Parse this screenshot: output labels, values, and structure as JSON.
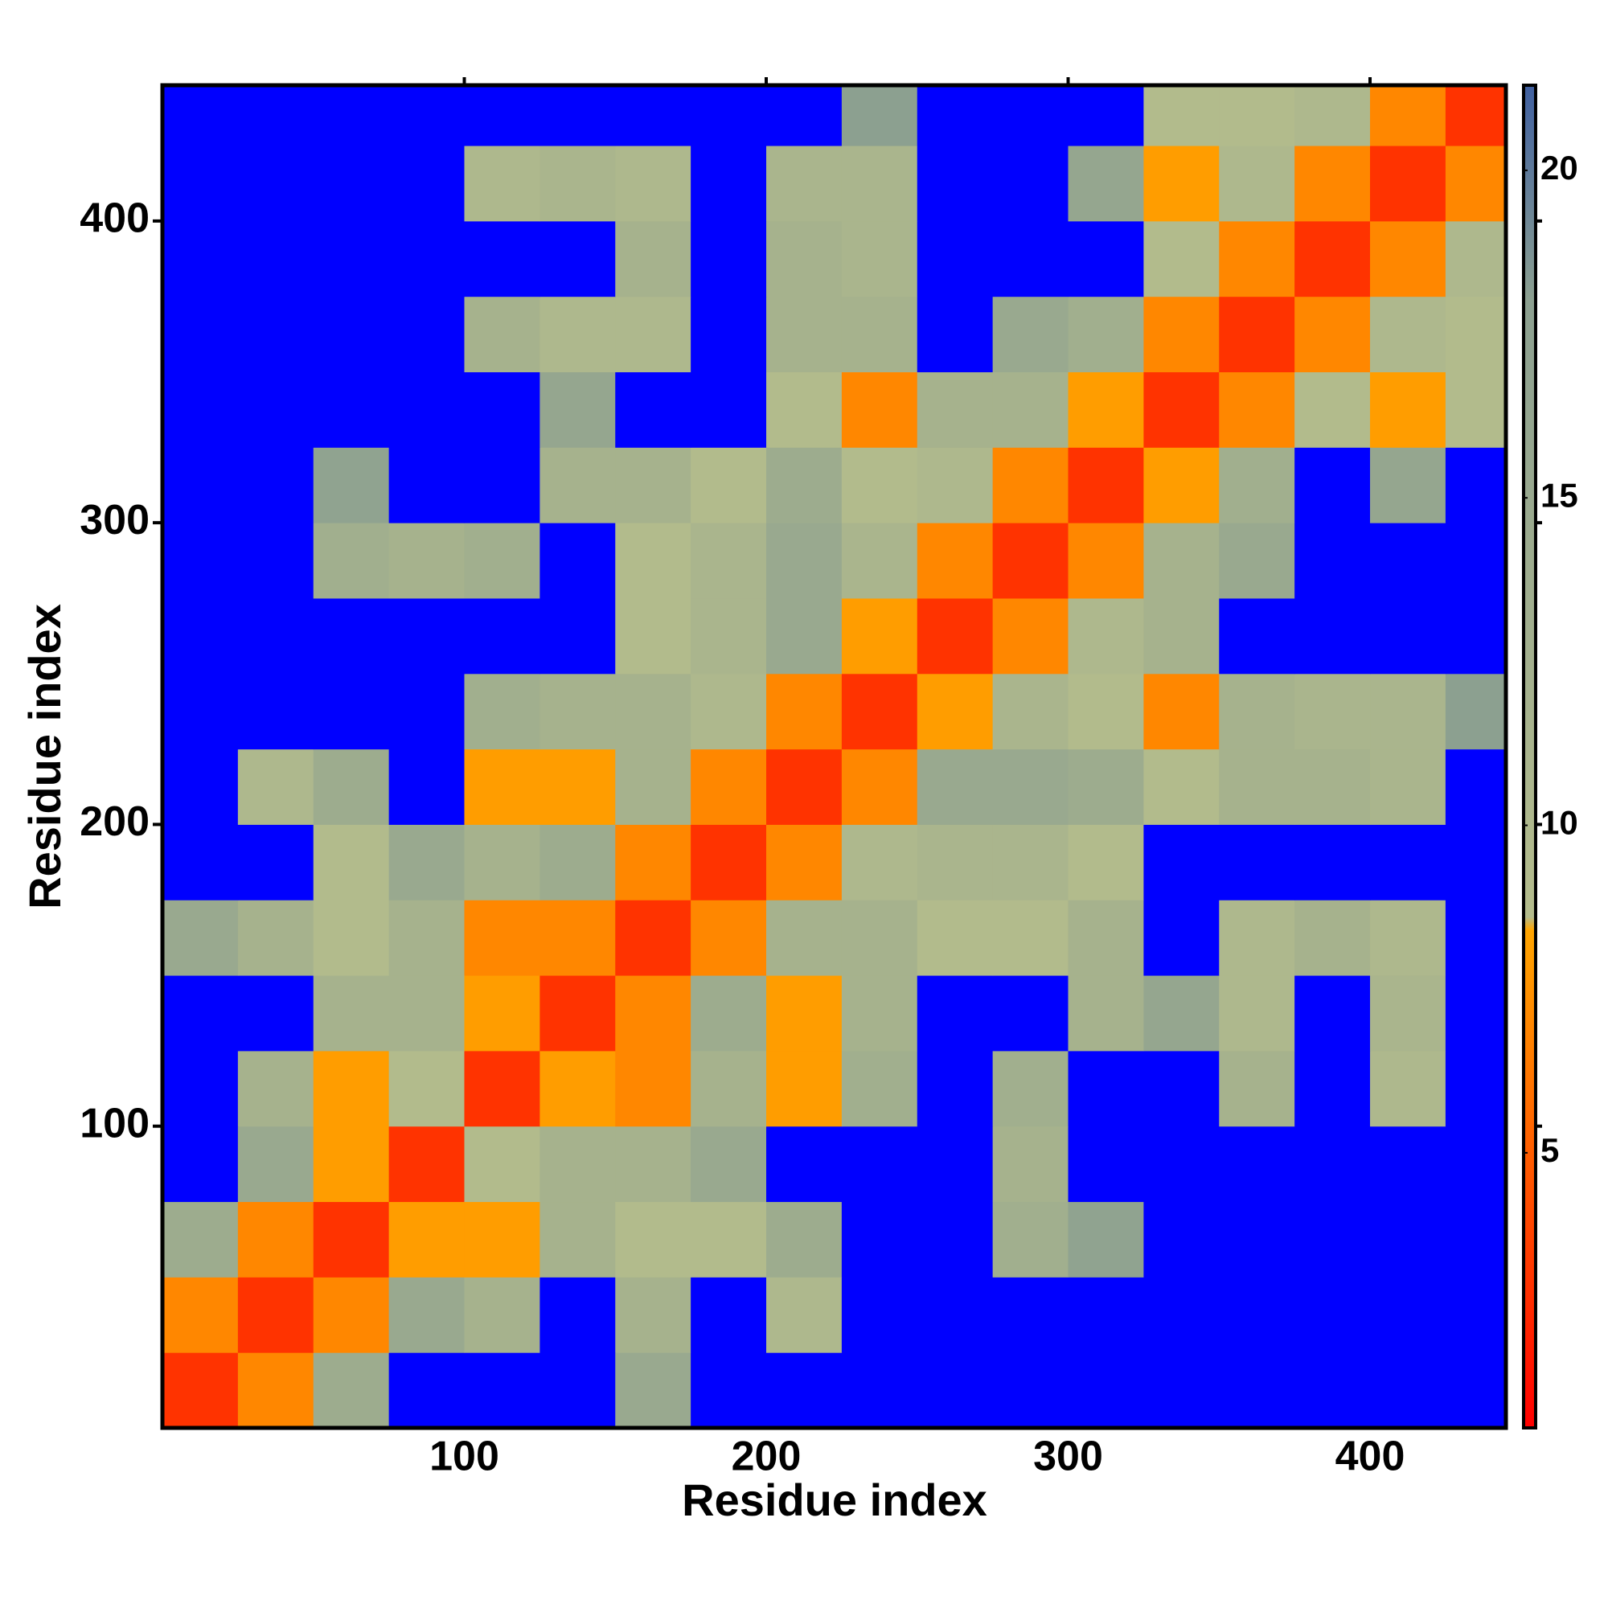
{
  "chart_data": {
    "type": "heatmap",
    "xlabel": "Residue index",
    "ylabel": "Residue index",
    "x_bins": [
      0,
      25,
      50,
      75,
      100,
      125,
      150,
      175,
      200,
      225,
      250,
      275,
      300,
      325,
      350,
      375,
      400,
      425,
      445
    ],
    "y_bins": [
      0,
      25,
      50,
      75,
      100,
      125,
      150,
      175,
      200,
      225,
      250,
      275,
      300,
      325,
      350,
      375,
      400,
      425,
      445
    ],
    "xlim": [
      0,
      445
    ],
    "ylim": [
      0,
      445
    ],
    "xticks": [
      100,
      200,
      300,
      400
    ],
    "yticks": [
      100,
      200,
      300,
      400
    ],
    "z": [
      [
        3,
        7,
        14,
        25,
        25,
        25,
        15,
        25,
        25,
        25,
        25,
        25,
        25,
        25,
        25,
        25,
        25,
        25
      ],
      [
        7,
        3,
        7,
        15,
        12,
        25,
        12,
        25,
        10,
        25,
        25,
        25,
        25,
        25,
        25,
        25,
        25,
        25
      ],
      [
        14,
        7,
        3,
        8,
        8,
        12,
        9,
        9,
        14,
        25,
        25,
        13,
        17,
        25,
        25,
        25,
        25,
        25
      ],
      [
        25,
        15,
        8,
        3,
        9,
        12,
        12,
        15,
        25,
        25,
        25,
        12,
        25,
        25,
        25,
        25,
        25,
        25
      ],
      [
        25,
        12,
        8,
        9,
        3,
        8,
        7,
        12,
        8,
        13,
        25,
        13,
        25,
        25,
        12,
        25,
        10,
        25
      ],
      [
        25,
        25,
        12,
        12,
        8,
        3,
        7,
        14,
        8,
        12,
        25,
        25,
        12,
        16,
        10,
        25,
        11,
        25
      ],
      [
        15,
        12,
        9,
        12,
        7,
        7,
        3,
        7,
        12,
        12,
        9,
        9,
        12,
        25,
        10,
        12,
        10,
        25
      ],
      [
        25,
        25,
        9,
        15,
        12,
        14,
        7,
        3,
        7,
        10,
        11,
        11,
        9,
        25,
        25,
        25,
        25,
        25
      ],
      [
        25,
        10,
        14,
        25,
        8,
        8,
        12,
        7,
        3,
        7,
        15,
        15,
        14,
        9,
        12,
        12,
        11,
        25
      ],
      [
        25,
        25,
        25,
        25,
        13,
        12,
        12,
        10,
        7,
        3,
        8,
        11,
        9,
        7,
        12,
        11,
        11,
        18
      ],
      [
        25,
        25,
        25,
        25,
        25,
        25,
        9,
        11,
        15,
        8,
        3,
        7,
        10,
        12,
        25,
        25,
        25,
        25
      ],
      [
        25,
        25,
        13,
        12,
        13,
        25,
        9,
        11,
        15,
        11,
        7,
        3,
        7,
        12,
        15,
        25,
        25,
        25
      ],
      [
        25,
        25,
        17,
        25,
        25,
        12,
        12,
        9,
        14,
        9,
        10,
        7,
        3,
        8,
        13,
        25,
        16,
        25
      ],
      [
        25,
        25,
        25,
        25,
        25,
        16,
        25,
        25,
        9,
        7,
        12,
        12,
        8,
        3,
        7,
        9,
        8,
        9
      ],
      [
        25,
        25,
        25,
        25,
        12,
        10,
        10,
        25,
        12,
        12,
        25,
        15,
        13,
        7,
        3,
        7,
        10,
        9
      ],
      [
        25,
        25,
        25,
        25,
        25,
        25,
        12,
        25,
        12,
        11,
        25,
        25,
        25,
        9,
        7,
        3,
        7,
        10
      ],
      [
        25,
        25,
        25,
        25,
        10,
        11,
        10,
        25,
        11,
        11,
        25,
        25,
        16,
        8,
        10,
        7,
        3,
        7
      ],
      [
        25,
        25,
        25,
        25,
        25,
        25,
        25,
        25,
        25,
        18,
        25,
        25,
        25,
        9,
        9,
        10,
        7,
        3
      ]
    ],
    "colorbar": {
      "range": [
        0.8,
        21.3
      ],
      "ticks": [
        5,
        10,
        15,
        20
      ],
      "stops": [
        {
          "value": 0.8,
          "color": "#ff0000"
        },
        {
          "value": 3,
          "color": "#ff3300"
        },
        {
          "value": 8.4,
          "color": "#ffa500"
        },
        {
          "value": 8.6,
          "color": "#b4bc8c"
        },
        {
          "value": 18,
          "color": "#8ca090"
        },
        {
          "value": 21.3,
          "color": "#4060a0"
        }
      ],
      "over_color": "#0000ff"
    }
  }
}
